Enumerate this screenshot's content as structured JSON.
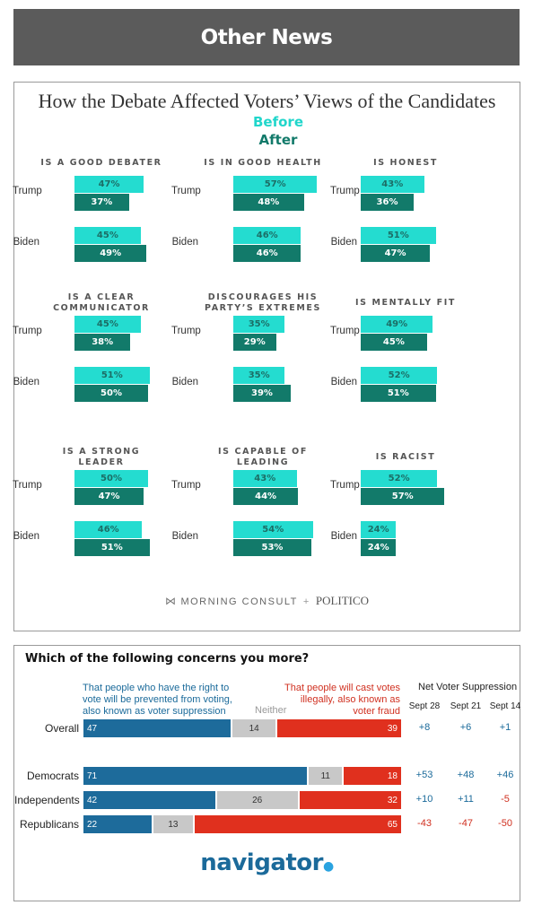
{
  "header": {
    "title": "Other News"
  },
  "debate": {
    "title": "How the Debate Affected Voters’ Views of the Candidates",
    "legend": {
      "before": "Before",
      "after": "After"
    },
    "colors": {
      "before": "#24dcd0",
      "after": "#127a6a"
    },
    "footer": {
      "morning_consult": "MORNING CONSULT",
      "plus": "+",
      "politico": "POLITICO"
    }
  },
  "concerns": {
    "title": "Which of the following concerns you more?",
    "suppression_label": "That people who have the right to vote will be prevented from voting, also known as voter suppression",
    "neither_label": "Neither",
    "fraud_label": "That people will cast votes illegally, also known as voter fraud",
    "net_title": "Net Voter Suppression",
    "dates": [
      "Sept 28",
      "Sept 21",
      "Sept 14"
    ],
    "colors": {
      "suppression": "#1d6b9b",
      "neither": "#c8c8c8",
      "fraud": "#e0301e"
    },
    "brand": "navigator"
  },
  "chart_data": [
    {
      "type": "bar",
      "title": "How the Debate Affected Voters’ Views of the Candidates",
      "legend": [
        "Before",
        "After"
      ],
      "panels": [
        {
          "title": "IS A GOOD DEBATER",
          "rows": [
            {
              "label": "Trump",
              "before": 47,
              "after": 37
            },
            {
              "label": "Biden",
              "before": 45,
              "after": 49
            }
          ]
        },
        {
          "title": "IS IN GOOD HEALTH",
          "rows": [
            {
              "label": "Trump",
              "before": 57,
              "after": 48
            },
            {
              "label": "Biden",
              "before": 46,
              "after": 46
            }
          ]
        },
        {
          "title": "IS HONEST",
          "rows": [
            {
              "label": "Trump",
              "before": 43,
              "after": 36
            },
            {
              "label": "Biden",
              "before": 51,
              "after": 47
            }
          ]
        },
        {
          "title": "IS A CLEAR\nCOMMUNICATOR",
          "rows": [
            {
              "label": "Trump",
              "before": 45,
              "after": 38
            },
            {
              "label": "Biden",
              "before": 51,
              "after": 50
            }
          ]
        },
        {
          "title": "DISCOURAGES HIS\nPARTY’S EXTREMES",
          "rows": [
            {
              "label": "Trump",
              "before": 35,
              "after": 29
            },
            {
              "label": "Biden",
              "before": 35,
              "after": 39
            }
          ]
        },
        {
          "title": "IS MENTALLY FIT",
          "rows": [
            {
              "label": "Trump",
              "before": 49,
              "after": 45
            },
            {
              "label": "Biden",
              "before": 52,
              "after": 51
            }
          ]
        },
        {
          "title": "IS A STRONG\nLEADER",
          "rows": [
            {
              "label": "Trump",
              "before": 50,
              "after": 47
            },
            {
              "label": "Biden",
              "before": 46,
              "after": 51
            }
          ]
        },
        {
          "title": "IS CAPABLE OF\nLEADING",
          "rows": [
            {
              "label": "Trump",
              "before": 43,
              "after": 44
            },
            {
              "label": "Biden",
              "before": 54,
              "after": 53
            }
          ]
        },
        {
          "title": "IS RACIST",
          "rows": [
            {
              "label": "Trump",
              "before": 52,
              "after": 57
            },
            {
              "label": "Biden",
              "before": 24,
              "after": 24
            }
          ]
        }
      ]
    },
    {
      "type": "bar",
      "stacked": true,
      "title": "Which of the following concerns you more?",
      "legend": [
        "That people who have the right to vote will be prevented from voting, also known as voter suppression",
        "Neither",
        "That people will cast votes illegally, also known as voter fraud"
      ],
      "groups": [
        {
          "label": "Overall",
          "suppression": 47,
          "neither": 14,
          "fraud": 39,
          "net": [
            "+8",
            "+6",
            "+1"
          ]
        },
        {
          "label": "Democrats",
          "suppression": 71,
          "neither": 11,
          "fraud": 18,
          "net": [
            "+53",
            "+48",
            "+46"
          ]
        },
        {
          "label": "Independents",
          "suppression": 42,
          "neither": 26,
          "fraud": 32,
          "net": [
            "+10",
            "+11",
            "-5"
          ]
        },
        {
          "label": "Republicans",
          "suppression": 22,
          "neither": 13,
          "fraud": 65,
          "net": [
            "-43",
            "-47",
            "-50"
          ]
        }
      ],
      "net_title": "Net Voter Suppression",
      "net_dates": [
        "Sept 28",
        "Sept 21",
        "Sept 14"
      ]
    }
  ]
}
